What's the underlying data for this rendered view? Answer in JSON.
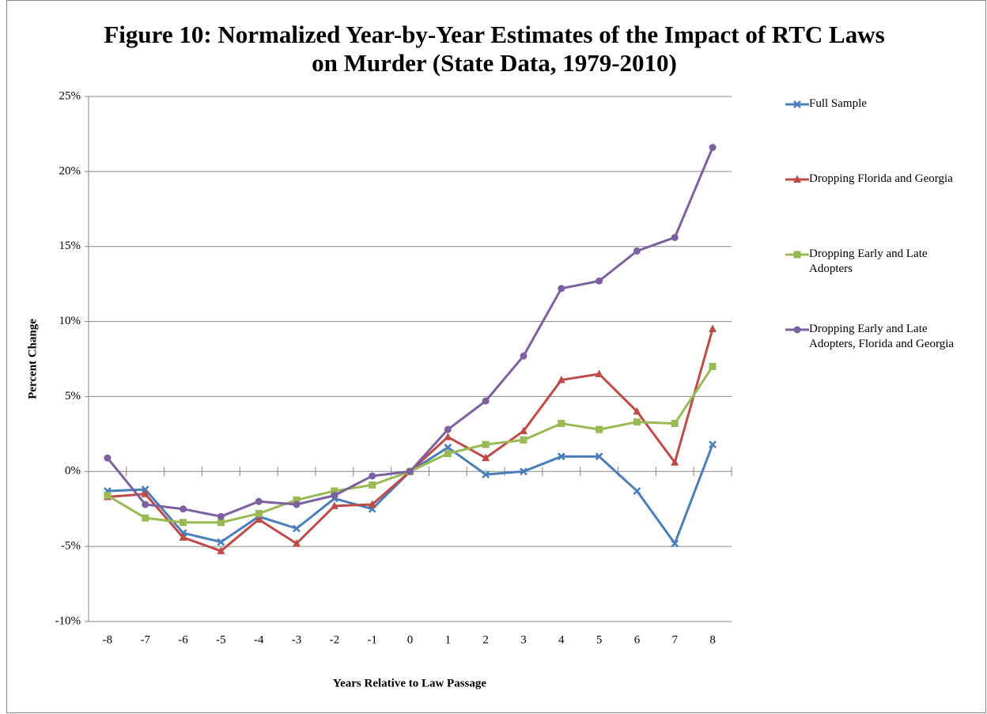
{
  "chart_data": {
    "type": "line",
    "title": "Figure 10: Normalized Year-by-Year Estimates of the Impact of RTC Laws on Murder (State Data, 1979-2010)",
    "x_label": "Years Relative to Law Passage",
    "y_label": "Percent Change",
    "categories": [
      "-8",
      "-7",
      "-6",
      "-5",
      "-4",
      "-3",
      "-2",
      "-1",
      "0",
      "1",
      "2",
      "3",
      "4",
      "5",
      "6",
      "7",
      "8"
    ],
    "ylim": [
      -10,
      25
    ],
    "yticks": [
      {
        "value": -10,
        "label": "-10%"
      },
      {
        "value": -5,
        "label": "-5%"
      },
      {
        "value": 0,
        "label": "0%"
      },
      {
        "value": 5,
        "label": "5%"
      },
      {
        "value": 10,
        "label": "10%"
      },
      {
        "value": 15,
        "label": "15%"
      },
      {
        "value": 20,
        "label": "20%"
      },
      {
        "value": 25,
        "label": "25%"
      }
    ],
    "grid": true,
    "legend": "right",
    "series": [
      {
        "name": "Full Sample",
        "color": "#4a7ebb",
        "marker": "x",
        "values": [
          -1.3,
          -1.2,
          -4.1,
          -4.7,
          -3.0,
          -3.8,
          -1.8,
          -2.5,
          0,
          1.6,
          -0.2,
          0.0,
          1.0,
          1.0,
          -1.3,
          -4.8,
          1.8
        ]
      },
      {
        "name": "Dropping Florida and Georgia",
        "color": "#be4b48",
        "marker": "triangle",
        "values": [
          -1.7,
          -1.5,
          -4.4,
          -5.3,
          -3.2,
          -4.8,
          -2.3,
          -2.2,
          0,
          2.3,
          0.9,
          2.7,
          6.1,
          6.5,
          4.0,
          0.6,
          9.5
        ]
      },
      {
        "name": "Dropping Early and Late Adopters",
        "color": "#98b954",
        "marker": "square",
        "values": [
          -1.6,
          -3.1,
          -3.4,
          -3.4,
          -2.8,
          -1.9,
          -1.3,
          -0.9,
          0,
          1.2,
          1.8,
          2.1,
          3.2,
          2.8,
          3.3,
          3.2,
          7.0
        ]
      },
      {
        "name": "Dropping Early and Late Adopters, Florida and Georgia",
        "color": "#7d60a0",
        "marker": "circle",
        "values": [
          0.9,
          -2.2,
          -2.5,
          -3.0,
          -2.0,
          -2.2,
          -1.6,
          -0.3,
          0,
          2.8,
          4.7,
          7.7,
          12.2,
          12.7,
          14.7,
          15.6,
          21.6
        ]
      }
    ]
  }
}
